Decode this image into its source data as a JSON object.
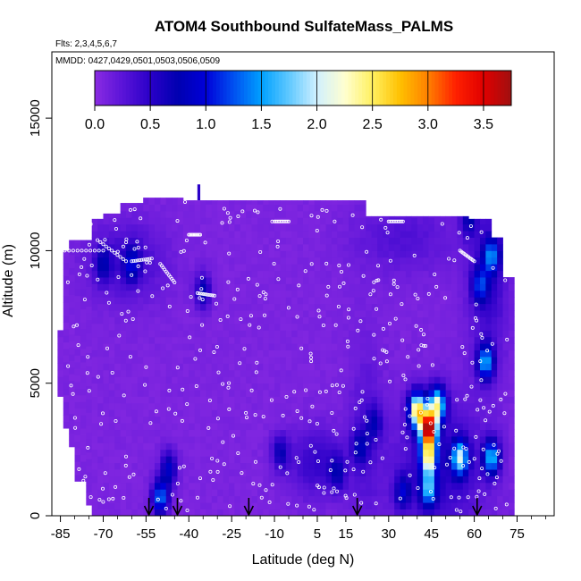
{
  "chart_data": {
    "type": "heatmap",
    "title": "ATOM4 Southbound SulfateMass_PALMS",
    "subtitle_flights": "Flts: 2,3,4,5,6,7",
    "subtitle_dates": "MMDD: 0427,0429,0501,0503,0506,0509",
    "xlabel": "Latitude (deg N)",
    "ylabel": "Altitude (m)",
    "xlim": [
      -88,
      88
    ],
    "ylim": [
      0,
      17500
    ],
    "x_ticks": [
      -85,
      -70,
      -55,
      -40,
      -25,
      -10,
      5,
      15,
      30,
      45,
      60,
      75
    ],
    "y_ticks": [
      0,
      5000,
      10000,
      15000
    ],
    "colorbar": {
      "min": 0.0,
      "max": 3.75,
      "ticks": [
        0.0,
        0.5,
        1.0,
        1.5,
        2.0,
        2.5,
        3.0,
        3.5
      ],
      "tick_labels": [
        "0.0",
        "0.5",
        "1.0",
        "1.5",
        "2.0",
        "2.5",
        "3.0",
        "3.5"
      ],
      "colors": [
        "#8a2be2",
        "#5a14d8",
        "#2a00c8",
        "#0000b0",
        "#0000d8",
        "#0050f0",
        "#00a0ff",
        "#60c8ff",
        "#d0f0ff",
        "#ffffd0",
        "#fff060",
        "#ffc000",
        "#ff8000",
        "#ff2000",
        "#e00000",
        "#a01010"
      ]
    },
    "arrow_latitudes": [
      -54,
      -44,
      -19,
      19,
      61
    ],
    "blobs": [
      {
        "lat": 44,
        "alt": 3300,
        "value": 3.4
      },
      {
        "lat": 40,
        "alt": 4000,
        "value": 2.4
      },
      {
        "lat": 47,
        "alt": 4200,
        "value": 2.0
      },
      {
        "lat": 44,
        "alt": 2200,
        "value": 2.0
      },
      {
        "lat": 55,
        "alt": 2200,
        "value": 1.7
      },
      {
        "lat": 66,
        "alt": 2200,
        "value": 1.5
      },
      {
        "lat": 44,
        "alt": 1000,
        "value": 1.3
      },
      {
        "lat": 64,
        "alt": 5800,
        "value": 1.4
      },
      {
        "lat": 66,
        "alt": 9800,
        "value": 1.1
      },
      {
        "lat": 62,
        "alt": 8700,
        "value": 0.9
      },
      {
        "lat": -50,
        "alt": 700,
        "value": 1.3
      },
      {
        "lat": -47,
        "alt": 1800,
        "value": 0.8
      },
      {
        "lat": -60,
        "alt": 9500,
        "value": 0.7
      },
      {
        "lat": -35,
        "alt": 8500,
        "value": 0.7
      },
      {
        "lat": -8,
        "alt": 2400,
        "value": 0.6
      },
      {
        "lat": 20,
        "alt": 2600,
        "value": 0.55
      },
      {
        "lat": 12,
        "alt": 1600,
        "value": 0.5
      },
      {
        "lat": -70,
        "alt": 9500,
        "value": 0.55
      },
      {
        "lat": 58,
        "alt": 11200,
        "value": 0.6
      },
      {
        "lat": 35,
        "alt": 900,
        "value": 0.7
      },
      {
        "lat": 25,
        "alt": 3500,
        "value": 0.5
      }
    ]
  }
}
